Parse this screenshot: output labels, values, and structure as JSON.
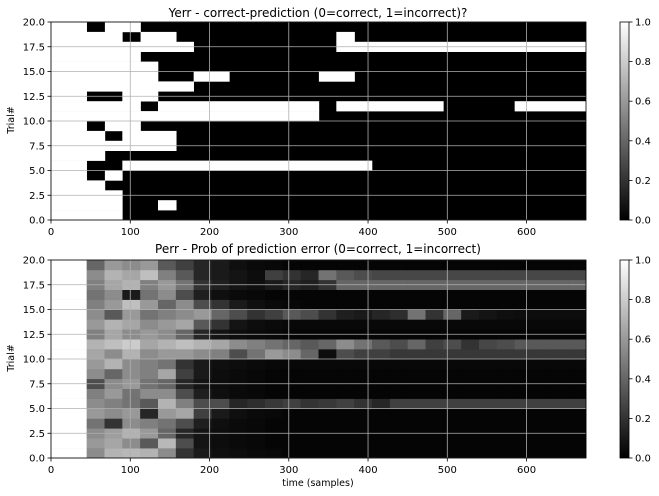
{
  "figure": {
    "shared_xlabel": "time (samples)"
  },
  "chart_data": [
    {
      "type": "heatmap",
      "title": "Yerr - correct-prediction (0=correct, 1=incorrect)?",
      "xlabel": "",
      "ylabel": "Trial#",
      "xlim": [
        0,
        675
      ],
      "ylim": [
        0,
        20
      ],
      "xticks": [
        0,
        100,
        200,
        300,
        400,
        500,
        600
      ],
      "yticks": [
        0.0,
        2.5,
        5.0,
        7.5,
        10.0,
        12.5,
        15.0,
        17.5,
        20.0
      ],
      "ytick_labels": [
        "0.0",
        "2.5",
        "5.0",
        "7.5",
        "10.0",
        "12.5",
        "15.0",
        "17.5",
        "20.0"
      ],
      "grid": true,
      "colormap": "gray",
      "colorbar": {
        "min": 0.0,
        "max": 1.0,
        "ticks": [
          "0.0",
          "0.2",
          "0.4",
          "0.6",
          "0.8",
          "1.0"
        ]
      },
      "cell_width": 22.5,
      "rows_bottom_to_top": [
        {
          "trial": 0,
          "white_ranges": [
            [
              0,
              90
            ]
          ]
        },
        {
          "trial": 1,
          "white_ranges": [
            [
              0,
              90
            ],
            [
              135,
              158
            ]
          ]
        },
        {
          "trial": 2,
          "white_ranges": [
            [
              0,
              90
            ]
          ]
        },
        {
          "trial": 3,
          "white_ranges": [
            [
              0,
              68
            ]
          ]
        },
        {
          "trial": 4,
          "white_ranges": [
            [
              0,
              45
            ],
            [
              68,
              90
            ]
          ]
        },
        {
          "trial": 5,
          "white_ranges": [
            [
              0,
              45
            ],
            [
              90,
              405
            ]
          ]
        },
        {
          "trial": 6,
          "white_ranges": [
            [
              0,
              68
            ]
          ]
        },
        {
          "trial": 7,
          "white_ranges": [
            [
              0,
              158
            ]
          ]
        },
        {
          "trial": 8,
          "white_ranges": [
            [
              0,
              68
            ],
            [
              90,
              158
            ]
          ]
        },
        {
          "trial": 9,
          "white_ranges": [
            [
              0,
              45
            ],
            [
              68,
              113
            ]
          ]
        },
        {
          "trial": 10,
          "white_ranges": [
            [
              0,
              113
            ],
            [
              113,
              338
            ]
          ]
        },
        {
          "trial": 11,
          "white_ranges": [
            [
              0,
              113
            ],
            [
              135,
              338
            ],
            [
              360,
              495
            ],
            [
              585,
              675
            ]
          ]
        },
        {
          "trial": 12,
          "white_ranges": [
            [
              0,
              45
            ],
            [
              90,
              135
            ]
          ]
        },
        {
          "trial": 13,
          "white_ranges": [
            [
              0,
              180
            ]
          ]
        },
        {
          "trial": 14,
          "white_ranges": [
            [
              0,
              135
            ],
            [
              180,
              225
            ],
            [
              338,
              383
            ]
          ]
        },
        {
          "trial": 15,
          "white_ranges": [
            [
              0,
              135
            ]
          ]
        },
        {
          "trial": 16,
          "white_ranges": [
            [
              0,
              113
            ]
          ]
        },
        {
          "trial": 17,
          "white_ranges": [
            [
              0,
              180
            ],
            [
              360,
              675
            ]
          ]
        },
        {
          "trial": 18,
          "white_ranges": [
            [
              0,
              90
            ],
            [
              113,
              158
            ],
            [
              360,
              383
            ]
          ]
        },
        {
          "trial": 19,
          "white_ranges": [
            [
              0,
              45
            ],
            [
              68,
              113
            ]
          ]
        }
      ]
    },
    {
      "type": "heatmap",
      "title": "Perr - Prob of prediction error (0=correct, 1=incorrect)",
      "xlabel": "time (samples)",
      "ylabel": "Trial#",
      "xlim": [
        0,
        675
      ],
      "ylim": [
        0,
        20
      ],
      "xticks": [
        0,
        100,
        200,
        300,
        400,
        500,
        600
      ],
      "yticks": [
        0.0,
        2.5,
        5.0,
        7.5,
        10.0,
        12.5,
        15.0,
        17.5,
        20.0
      ],
      "ytick_labels": [
        "0.0",
        "2.5",
        "5.0",
        "7.5",
        "10.0",
        "12.5",
        "15.0",
        "17.5",
        "20.0"
      ],
      "grid": true,
      "colormap": "gray",
      "colorbar": {
        "min": 0.0,
        "max": 1.0,
        "ticks": [
          "0.0",
          "0.2",
          "0.4",
          "0.6",
          "0.8",
          "1.0"
        ]
      },
      "cell_width": 22.5,
      "note_columns": "values per 22.5-sample column from x=45; columns before 45 are white (1.0)",
      "rows_bottom_to_top": [
        [
          0.55,
          0.7,
          0.72,
          0.7,
          0.55,
          0.2,
          0.1,
          0.06,
          0.05,
          0.04,
          0.03,
          0.02,
          0.02,
          0.02,
          0.02,
          0.02,
          0.02,
          0.02,
          0.02,
          0.02,
          0.02,
          0.02,
          0.02,
          0.02,
          0.02,
          0.02,
          0.02,
          0.02
        ],
        [
          0.6,
          0.65,
          0.55,
          0.35,
          0.72,
          0.3,
          0.08,
          0.05,
          0.04,
          0.03,
          0.02,
          0.02,
          0.02,
          0.02,
          0.02,
          0.02,
          0.02,
          0.02,
          0.02,
          0.02,
          0.02,
          0.02,
          0.02,
          0.02,
          0.02,
          0.02,
          0.02,
          0.02
        ],
        [
          0.55,
          0.62,
          0.7,
          0.6,
          0.4,
          0.15,
          0.08,
          0.05,
          0.04,
          0.03,
          0.02,
          0.02,
          0.02,
          0.02,
          0.02,
          0.02,
          0.02,
          0.02,
          0.02,
          0.02,
          0.02,
          0.02,
          0.02,
          0.02,
          0.02,
          0.02,
          0.02,
          0.02
        ],
        [
          0.45,
          0.2,
          0.55,
          0.5,
          0.45,
          0.3,
          0.12,
          0.06,
          0.04,
          0.03,
          0.02,
          0.02,
          0.02,
          0.02,
          0.02,
          0.02,
          0.02,
          0.02,
          0.02,
          0.02,
          0.02,
          0.02,
          0.02,
          0.02,
          0.02,
          0.02,
          0.02,
          0.02
        ],
        [
          0.6,
          0.55,
          0.6,
          0.15,
          0.6,
          0.65,
          0.25,
          0.1,
          0.06,
          0.04,
          0.03,
          0.02,
          0.02,
          0.02,
          0.02,
          0.02,
          0.02,
          0.02,
          0.02,
          0.02,
          0.02,
          0.02,
          0.02,
          0.02,
          0.02,
          0.02,
          0.02,
          0.02
        ],
        [
          0.55,
          0.5,
          0.45,
          0.35,
          0.7,
          0.5,
          0.3,
          0.3,
          0.15,
          0.18,
          0.22,
          0.25,
          0.2,
          0.22,
          0.25,
          0.2,
          0.15,
          0.25,
          0.25,
          0.25,
          0.25,
          0.25,
          0.25,
          0.25,
          0.25,
          0.25,
          0.25,
          0.25
        ],
        [
          0.5,
          0.6,
          0.45,
          0.55,
          0.55,
          0.3,
          0.12,
          0.06,
          0.04,
          0.03,
          0.02,
          0.02,
          0.02,
          0.02,
          0.02,
          0.02,
          0.02,
          0.02,
          0.02,
          0.02,
          0.02,
          0.02,
          0.02,
          0.02,
          0.02,
          0.02,
          0.02,
          0.02
        ],
        [
          0.3,
          0.55,
          0.6,
          0.45,
          0.4,
          0.15,
          0.08,
          0.05,
          0.04,
          0.03,
          0.02,
          0.02,
          0.02,
          0.02,
          0.02,
          0.02,
          0.02,
          0.02,
          0.02,
          0.02,
          0.02,
          0.02,
          0.02,
          0.02,
          0.02,
          0.02,
          0.02,
          0.02
        ],
        [
          0.55,
          0.4,
          0.55,
          0.5,
          0.65,
          0.25,
          0.1,
          0.05,
          0.04,
          0.03,
          0.02,
          0.02,
          0.02,
          0.02,
          0.02,
          0.02,
          0.02,
          0.02,
          0.02,
          0.02,
          0.02,
          0.02,
          0.02,
          0.02,
          0.02,
          0.02,
          0.02,
          0.02
        ],
        [
          0.6,
          0.7,
          0.55,
          0.5,
          0.45,
          0.2,
          0.1,
          0.06,
          0.05,
          0.04,
          0.03,
          0.03,
          0.03,
          0.03,
          0.03,
          0.03,
          0.03,
          0.03,
          0.03,
          0.03,
          0.03,
          0.03,
          0.03,
          0.03,
          0.03,
          0.03,
          0.03,
          0.03
        ],
        [
          0.65,
          0.55,
          0.7,
          0.55,
          0.6,
          0.6,
          0.55,
          0.5,
          0.3,
          0.45,
          0.6,
          0.55,
          0.4,
          0.05,
          0.3,
          0.25,
          0.25,
          0.22,
          0.22,
          0.22,
          0.22,
          0.22,
          0.22,
          0.22,
          0.22,
          0.22,
          0.22,
          0.22
        ],
        [
          0.7,
          0.75,
          0.8,
          0.65,
          0.7,
          0.75,
          0.7,
          0.65,
          0.55,
          0.5,
          0.45,
          0.4,
          0.35,
          0.4,
          0.55,
          0.45,
          0.35,
          0.3,
          0.4,
          0.25,
          0.3,
          0.2,
          0.28,
          0.3,
          0.35,
          0.35,
          0.35,
          0.35
        ],
        [
          0.5,
          0.65,
          0.55,
          0.6,
          0.55,
          0.4,
          0.15,
          0.08,
          0.05,
          0.04,
          0.03,
          0.02,
          0.02,
          0.02,
          0.02,
          0.02,
          0.02,
          0.02,
          0.02,
          0.02,
          0.02,
          0.02,
          0.02,
          0.02,
          0.02,
          0.02,
          0.02,
          0.02
        ],
        [
          0.6,
          0.7,
          0.65,
          0.55,
          0.6,
          0.65,
          0.35,
          0.2,
          0.08,
          0.05,
          0.04,
          0.03,
          0.03,
          0.03,
          0.03,
          0.03,
          0.03,
          0.03,
          0.03,
          0.03,
          0.03,
          0.03,
          0.03,
          0.03,
          0.03,
          0.03,
          0.03,
          0.03
        ],
        [
          0.55,
          0.35,
          0.6,
          0.45,
          0.5,
          0.55,
          0.6,
          0.4,
          0.3,
          0.2,
          0.25,
          0.35,
          0.3,
          0.2,
          0.12,
          0.1,
          0.15,
          0.18,
          0.45,
          0.2,
          0.4,
          0.1,
          0.08,
          0.06,
          0.05,
          0.05,
          0.05,
          0.05
        ],
        [
          0.5,
          0.6,
          0.75,
          0.6,
          0.4,
          0.55,
          0.3,
          0.2,
          0.1,
          0.06,
          0.04,
          0.03,
          0.02,
          0.02,
          0.02,
          0.02,
          0.02,
          0.02,
          0.02,
          0.02,
          0.02,
          0.02,
          0.02,
          0.02,
          0.02,
          0.02,
          0.02,
          0.02
        ],
        [
          0.45,
          0.55,
          0.1,
          0.45,
          0.55,
          0.3,
          0.12,
          0.06,
          0.04,
          0.03,
          0.02,
          0.02,
          0.02,
          0.02,
          0.02,
          0.02,
          0.02,
          0.02,
          0.02,
          0.02,
          0.02,
          0.02,
          0.02,
          0.02,
          0.02,
          0.02,
          0.02,
          0.02
        ],
        [
          0.5,
          0.65,
          0.7,
          0.5,
          0.6,
          0.45,
          0.2,
          0.12,
          0.08,
          0.06,
          0.1,
          0.15,
          0.12,
          0.2,
          0.4,
          0.4,
          0.4,
          0.4,
          0.4,
          0.4,
          0.4,
          0.4,
          0.4,
          0.4,
          0.4,
          0.4,
          0.4,
          0.4
        ],
        [
          0.55,
          0.7,
          0.65,
          0.75,
          0.5,
          0.35,
          0.15,
          0.1,
          0.08,
          0.05,
          0.25,
          0.2,
          0.15,
          0.45,
          0.35,
          0.3,
          0.28,
          0.28,
          0.28,
          0.28,
          0.28,
          0.28,
          0.28,
          0.28,
          0.28,
          0.28,
          0.28,
          0.28
        ],
        [
          0.4,
          0.6,
          0.55,
          0.6,
          0.35,
          0.25,
          0.15,
          0.1,
          0.06,
          0.04,
          0.03,
          0.02,
          0.02,
          0.02,
          0.02,
          0.02,
          0.02,
          0.02,
          0.02,
          0.02,
          0.02,
          0.02,
          0.02,
          0.02,
          0.02,
          0.02,
          0.02,
          0.02
        ]
      ]
    }
  ]
}
